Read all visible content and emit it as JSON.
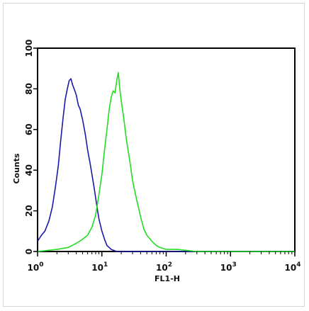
{
  "chart_data": {
    "type": "line",
    "xlabel": "FL1-H",
    "ylabel": "Counts",
    "x_scale": "log",
    "xlim": [
      1,
      10000
    ],
    "ylim": [
      0,
      100
    ],
    "x_ticks": [
      {
        "value": 1,
        "base": "10",
        "exp": "0"
      },
      {
        "value": 10,
        "base": "10",
        "exp": "1"
      },
      {
        "value": 100,
        "base": "10",
        "exp": "2"
      },
      {
        "value": 1000,
        "base": "10",
        "exp": "3"
      },
      {
        "value": 10000,
        "base": "10",
        "exp": "4"
      }
    ],
    "y_ticks": [
      "0",
      "20",
      "40",
      "60",
      "80",
      "100"
    ],
    "grid": false,
    "series": [
      {
        "color": "#1a1aa8",
        "x": [
          1.0,
          1.15,
          1.3,
          1.5,
          1.7,
          1.9,
          2.1,
          2.3,
          2.5,
          2.7,
          2.9,
          3.1,
          3.3,
          3.5,
          3.7,
          4.0,
          4.3,
          4.6,
          5.0,
          5.5,
          6.0,
          6.5,
          7.0,
          7.7,
          8.3,
          9.0,
          10.0,
          11.0,
          12.0,
          14.0,
          17.0,
          20.0,
          30.0,
          50.0,
          100.0,
          1000.0,
          10000.0
        ],
        "y": [
          5,
          8,
          10,
          15,
          22,
          32,
          42,
          55,
          66,
          75,
          80,
          84,
          85,
          82,
          80,
          77,
          72,
          70,
          65,
          58,
          50,
          44,
          38,
          30,
          23,
          16,
          10,
          6,
          3,
          1,
          0,
          0,
          0,
          0,
          0,
          0,
          0
        ]
      },
      {
        "color": "#22dd22",
        "x": [
          1.0,
          2.0,
          3.0,
          4.0,
          5.0,
          6.0,
          7.0,
          8.0,
          9.0,
          10.0,
          11.0,
          12.0,
          13.0,
          14.0,
          15.0,
          16.0,
          17.0,
          18.0,
          19.0,
          20.0,
          22.0,
          24.0,
          27.0,
          30.0,
          35.0,
          40.0,
          45.0,
          50.0,
          60.0,
          70.0,
          80.0,
          100.0,
          150.0,
          300.0,
          1000.0,
          10000.0
        ],
        "y": [
          0,
          1,
          2,
          4,
          6,
          8,
          12,
          18,
          28,
          38,
          50,
          60,
          70,
          76,
          79,
          78,
          84,
          88,
          80,
          74,
          65,
          55,
          45,
          35,
          25,
          17,
          11,
          8,
          5,
          3,
          2,
          1,
          1,
          0,
          0,
          0
        ]
      }
    ]
  }
}
